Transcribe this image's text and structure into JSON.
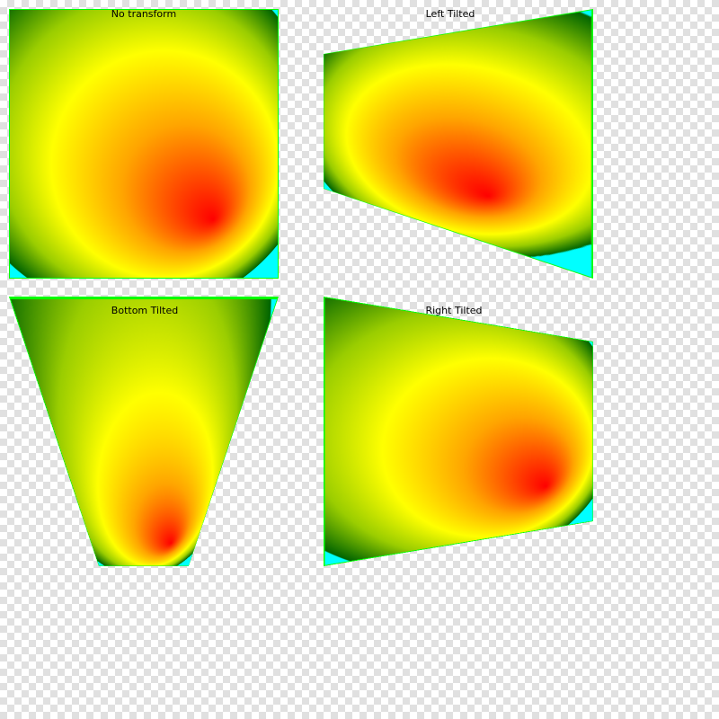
{
  "panels": [
    {
      "id": "no-transform",
      "label": "No transform"
    },
    {
      "id": "left-tilted",
      "label": "Left Tilted"
    },
    {
      "id": "bottom-tilted",
      "label": "Bottom Tilted"
    },
    {
      "id": "right-tilted",
      "label": "Right Tilted"
    }
  ],
  "gradient": {
    "type": "radial",
    "stops": [
      {
        "offset": 0,
        "color": "#ff0000"
      },
      {
        "offset": 0.35,
        "color": "#ffa500"
      },
      {
        "offset": 0.62,
        "color": "#ffff00"
      },
      {
        "offset": 0.82,
        "color": "#9acd00"
      },
      {
        "offset": 0.995,
        "color": "#006400"
      },
      {
        "offset": 1,
        "color": "#00ffff"
      }
    ]
  },
  "colors": {
    "border": "#00ff00",
    "checker_light": "#ffffff",
    "checker_dark": "#e0e0e0",
    "outside": "#00ffff"
  }
}
